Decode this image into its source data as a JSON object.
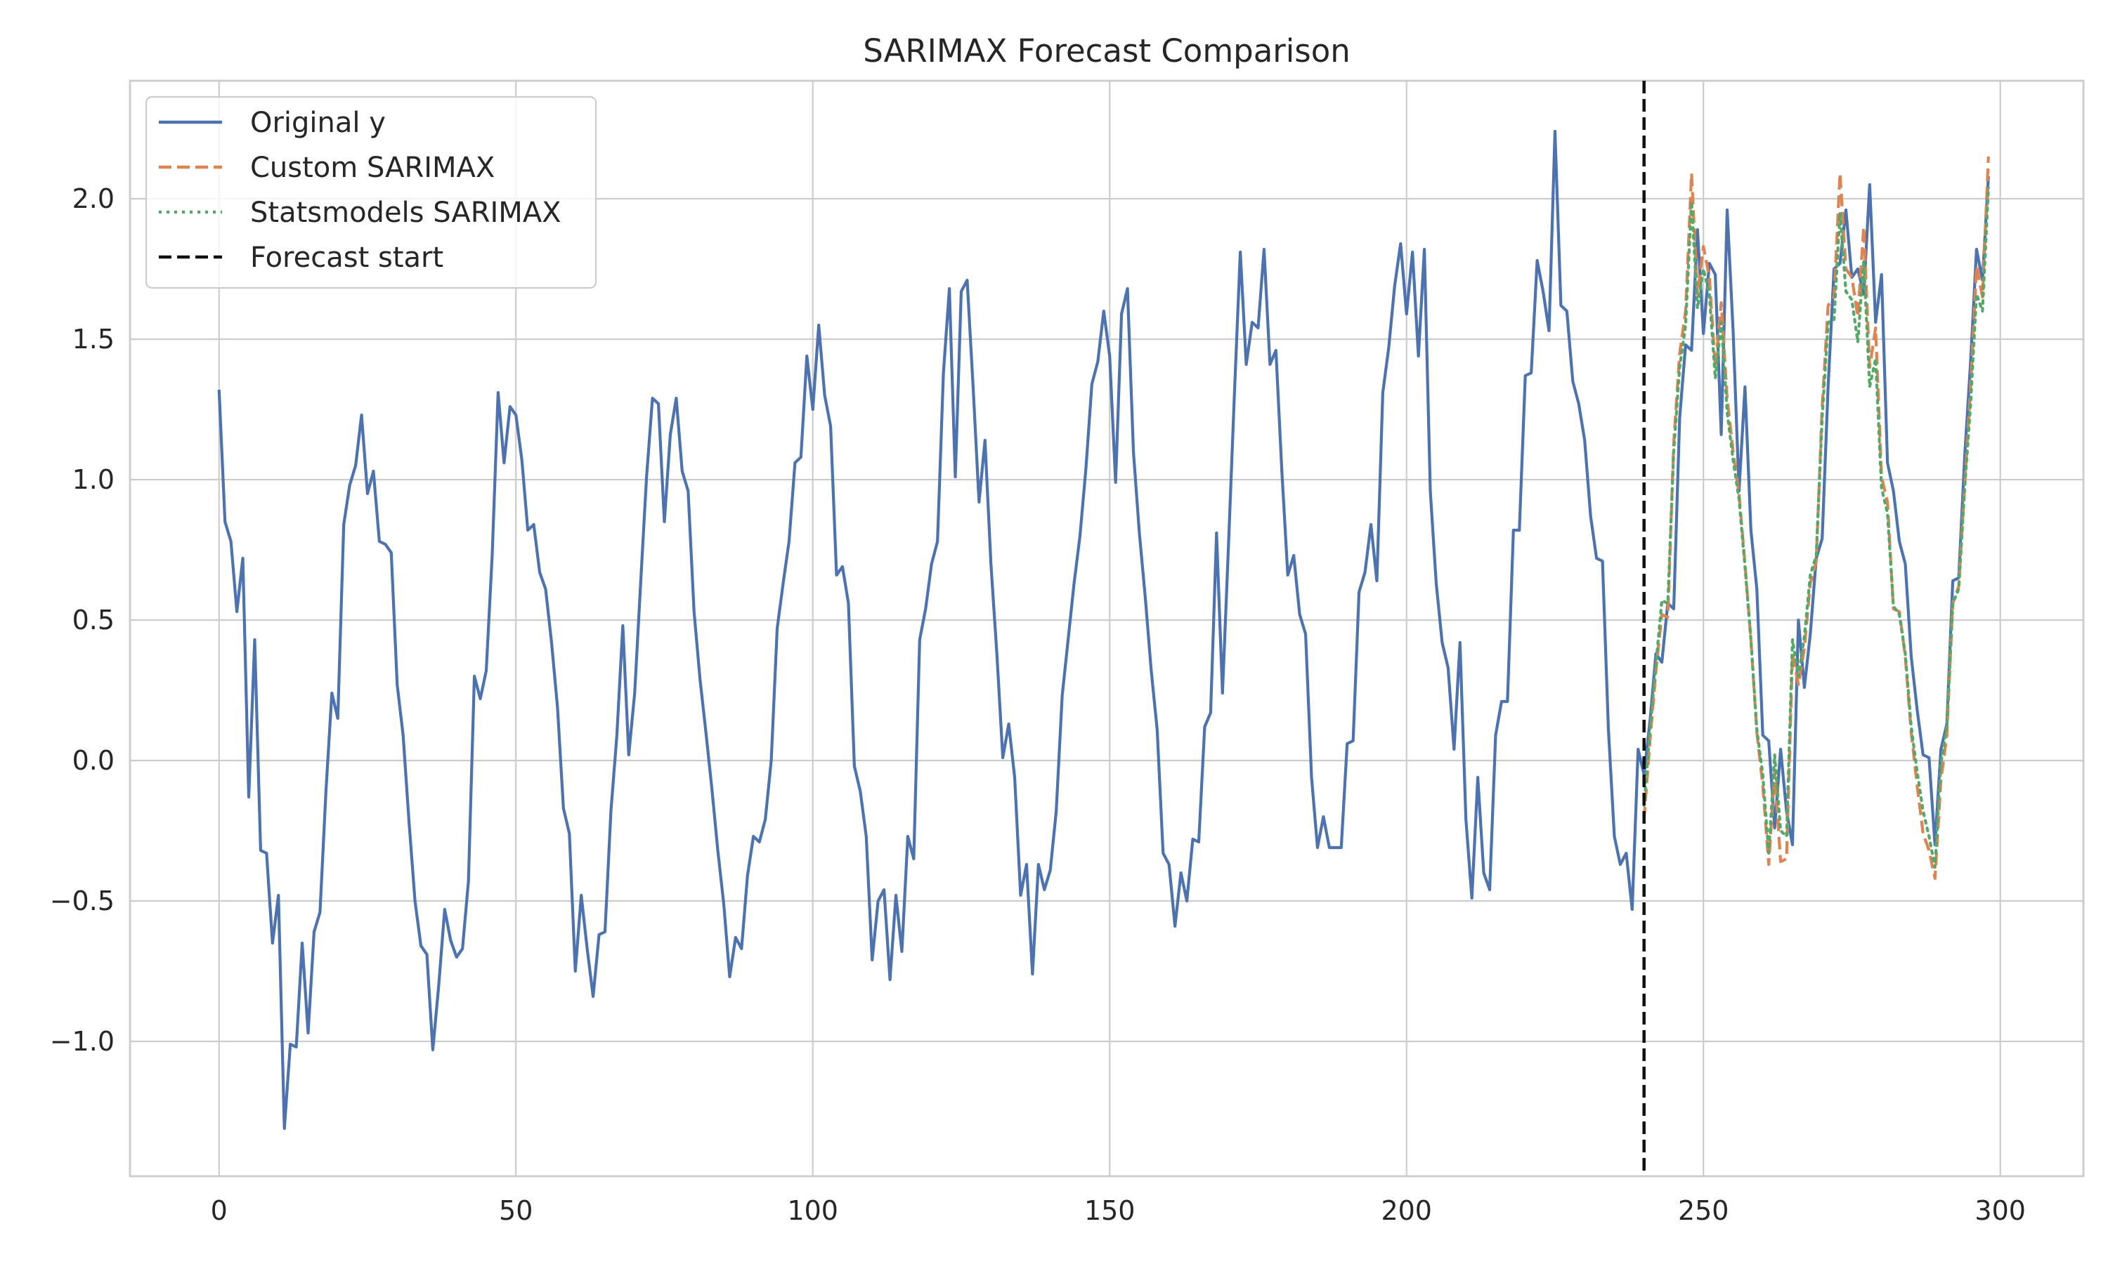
{
  "chart_data": {
    "type": "line",
    "title": "SARIMAX Forecast Comparison",
    "xlabel": "",
    "ylabel": "",
    "xlim": [
      -15,
      314
    ],
    "ylim": [
      -1.48,
      2.42
    ],
    "x_ticks": [
      0,
      50,
      100,
      150,
      200,
      250,
      300
    ],
    "x_tick_labels": [
      "0",
      "50",
      "100",
      "150",
      "200",
      "250",
      "300"
    ],
    "y_ticks": [
      -1.0,
      -0.5,
      0.0,
      0.5,
      1.0,
      1.5,
      2.0
    ],
    "y_tick_labels": [
      "−1.0",
      "−0.5",
      "0.0",
      "0.5",
      "1.0",
      "1.5",
      "2.0"
    ],
    "grid": true,
    "legend_position": "top-left",
    "forecast_start_x": 240,
    "series": [
      {
        "name": "Original y",
        "color": "#4c72b0",
        "style": "solid",
        "x_start": 0,
        "values": [
          1.32,
          0.85,
          0.78,
          0.53,
          0.72,
          -0.13,
          0.43,
          -0.32,
          -0.33,
          -0.65,
          -0.48,
          -1.31,
          -1.01,
          -1.02,
          -0.65,
          -0.97,
          -0.61,
          -0.54,
          -0.11,
          0.24,
          0.15,
          0.84,
          0.98,
          1.05,
          1.23,
          0.95,
          1.03,
          0.78,
          0.77,
          0.74,
          0.27,
          0.09,
          -0.22,
          -0.5,
          -0.66,
          -0.69,
          -1.03,
          -0.8,
          -0.53,
          -0.64,
          -0.7,
          -0.67,
          -0.43,
          0.3,
          0.22,
          0.32,
          0.73,
          1.31,
          1.06,
          1.26,
          1.23,
          1.07,
          0.82,
          0.84,
          0.67,
          0.61,
          0.42,
          0.19,
          -0.17,
          -0.26,
          -0.75,
          -0.48,
          -0.67,
          -0.84,
          -0.62,
          -0.61,
          -0.18,
          0.09,
          0.48,
          0.02,
          0.24,
          0.63,
          1.01,
          1.29,
          1.27,
          0.85,
          1.16,
          1.29,
          1.03,
          0.96,
          0.53,
          0.29,
          0.1,
          -0.1,
          -0.32,
          -0.51,
          -0.77,
          -0.63,
          -0.67,
          -0.41,
          -0.27,
          -0.29,
          -0.21,
          0.0,
          0.47,
          0.63,
          0.78,
          1.06,
          1.08,
          1.44,
          1.25,
          1.55,
          1.3,
          1.19,
          0.66,
          0.69,
          0.56,
          -0.02,
          -0.11,
          -0.27,
          -0.71,
          -0.5,
          -0.46,
          -0.78,
          -0.48,
          -0.68,
          -0.27,
          -0.35,
          0.43,
          0.54,
          0.7,
          0.78,
          1.38,
          1.68,
          1.01,
          1.67,
          1.71,
          1.33,
          0.92,
          1.14,
          0.7,
          0.38,
          0.01,
          0.13,
          -0.06,
          -0.48,
          -0.37,
          -0.76,
          -0.37,
          -0.46,
          -0.39,
          -0.18,
          0.23,
          0.43,
          0.63,
          0.8,
          1.04,
          1.34,
          1.42,
          1.6,
          1.44,
          0.99,
          1.59,
          1.68,
          1.1,
          0.81,
          0.58,
          0.32,
          0.11,
          -0.33,
          -0.37,
          -0.59,
          -0.4,
          -0.5,
          -0.28,
          -0.29,
          0.12,
          0.17,
          0.81,
          0.24,
          0.76,
          1.3,
          1.81,
          1.41,
          1.56,
          1.54,
          1.82,
          1.41,
          1.46,
          1.03,
          0.66,
          0.73,
          0.52,
          0.45,
          -0.06,
          -0.31,
          -0.2,
          -0.31,
          -0.31,
          -0.31,
          0.06,
          0.07,
          0.6,
          0.67,
          0.84,
          0.64,
          1.31,
          1.47,
          1.69,
          1.84,
          1.59,
          1.81,
          1.44,
          1.82,
          0.96,
          0.63,
          0.42,
          0.33,
          0.04,
          0.42,
          -0.21,
          -0.49,
          -0.06,
          -0.4,
          -0.46,
          0.09,
          0.21,
          0.21,
          0.82,
          0.82,
          1.37,
          1.38,
          1.78,
          1.67,
          1.53,
          2.24,
          1.62,
          1.6,
          1.35,
          1.27,
          1.14,
          0.87,
          0.72,
          0.71,
          0.11,
          -0.27,
          -0.37,
          -0.33,
          -0.53,
          0.04,
          -0.05,
          0.14,
          0.38,
          0.35,
          0.56,
          0.54,
          1.22,
          1.48,
          1.46,
          1.89,
          1.52,
          1.77,
          1.73,
          1.16,
          1.96,
          1.53,
          0.96,
          1.33,
          0.82,
          0.61,
          0.09,
          0.07,
          -0.24,
          0.04,
          -0.18,
          -0.3,
          0.5,
          0.26,
          0.45,
          0.72,
          0.79,
          1.33,
          1.75,
          1.77,
          1.96,
          1.72,
          1.75,
          1.66,
          2.05,
          1.56,
          1.73,
          1.06,
          0.96,
          0.78,
          0.7,
          0.37,
          0.18,
          0.02,
          0.01,
          -0.3,
          0.04,
          0.13,
          0.64,
          0.65,
          1.08,
          1.42,
          1.82,
          1.71,
          2.08
        ]
      },
      {
        "name": "Custom SARIMAX",
        "color": "#dd8452",
        "style": "dashed",
        "x_start": 240,
        "values": [
          -0.21,
          0.07,
          0.32,
          0.52,
          0.51,
          1.13,
          1.45,
          1.6,
          2.09,
          1.66,
          1.83,
          1.72,
          1.4,
          1.63,
          1.29,
          1.1,
          0.95,
          0.7,
          0.43,
          0.1,
          -0.09,
          -0.37,
          -0.04,
          -0.36,
          -0.35,
          0.38,
          0.27,
          0.4,
          0.63,
          0.71,
          1.26,
          1.62,
          1.65,
          2.09,
          1.75,
          1.72,
          1.58,
          1.9,
          1.4,
          1.54,
          1.01,
          0.92,
          0.54,
          0.53,
          0.37,
          0.1,
          -0.09,
          -0.26,
          -0.32,
          -0.42,
          -0.07,
          0.09,
          0.56,
          0.62,
          0.98,
          1.33,
          1.76,
          1.65,
          2.15
        ]
      },
      {
        "name": "Statsmodels SARIMAX",
        "color": "#55a868",
        "style": "dotted",
        "x_start": 240,
        "values": [
          -0.16,
          0.11,
          0.34,
          0.57,
          0.56,
          1.1,
          1.4,
          1.55,
          1.99,
          1.61,
          1.75,
          1.66,
          1.36,
          1.56,
          1.24,
          1.07,
          0.93,
          0.69,
          0.43,
          0.11,
          -0.05,
          -0.33,
          0.02,
          -0.25,
          -0.27,
          0.43,
          0.3,
          0.44,
          0.66,
          0.73,
          1.22,
          1.56,
          1.57,
          1.95,
          1.67,
          1.64,
          1.49,
          1.78,
          1.33,
          1.43,
          0.97,
          0.88,
          0.55,
          0.52,
          0.38,
          0.12,
          -0.04,
          -0.18,
          -0.27,
          -0.38,
          -0.01,
          0.12,
          0.56,
          0.61,
          0.97,
          1.27,
          1.66,
          1.6,
          2.04
        ]
      },
      {
        "name": "Forecast start",
        "color": "#111111",
        "style": "dashed",
        "type": "vline",
        "x": 240
      }
    ]
  }
}
